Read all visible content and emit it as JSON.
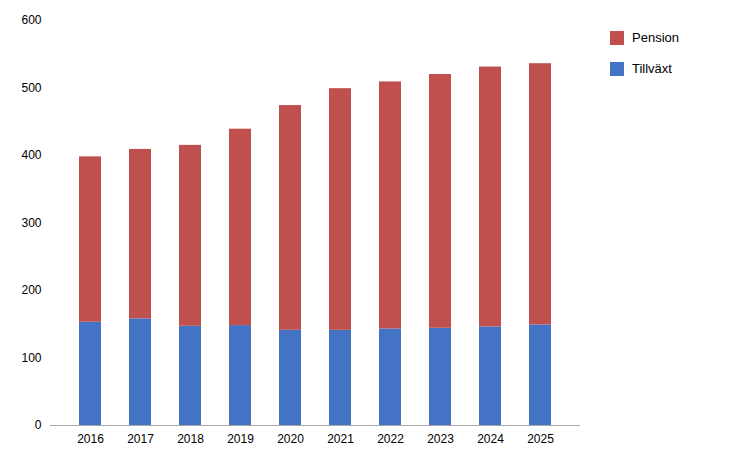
{
  "chart_data": {
    "type": "bar",
    "stacked": true,
    "categories": [
      "2016",
      "2017",
      "2018",
      "2019",
      "2020",
      "2021",
      "2022",
      "2023",
      "2024",
      "2025"
    ],
    "series": [
      {
        "name": "Tillväxt",
        "color": "#4472C4",
        "values": [
          153,
          158,
          147,
          148,
          141,
          141,
          143,
          144,
          146,
          149
        ]
      },
      {
        "name": "Pension",
        "color": "#C0504D",
        "values": [
          245,
          251,
          268,
          291,
          333,
          358,
          366,
          376,
          385,
          387
        ]
      }
    ],
    "ylim": [
      0,
      600
    ],
    "yticks": [
      0,
      100,
      200,
      300,
      400,
      500,
      600
    ],
    "grid": false,
    "legend": "right"
  }
}
